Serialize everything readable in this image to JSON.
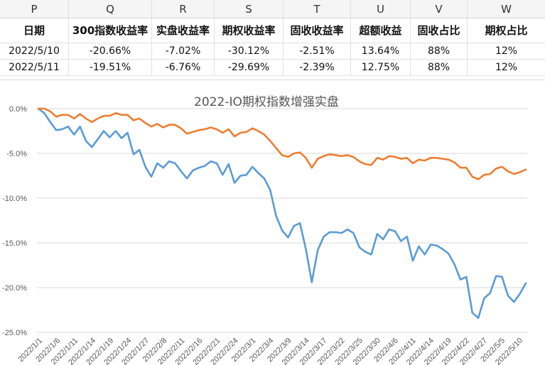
{
  "sheet": {
    "columns": [
      "P",
      "Q",
      "R",
      "S",
      "T",
      "U",
      "V",
      "W"
    ],
    "headers": [
      "日期",
      "300指数收益率",
      "实盘收益率",
      "期权收益率",
      "固收收益率",
      "超额收益",
      "固收占比",
      "期权占比"
    ],
    "rows": [
      [
        "2022/5/10",
        "-20.66%",
        "-7.02%",
        "-30.12%",
        "-2.51%",
        "13.64%",
        "88%",
        "12%"
      ],
      [
        "2022/5/11",
        "-19.51%",
        "-6.76%",
        "-29.69%",
        "-2.39%",
        "12.75%",
        "88%",
        "12%"
      ]
    ]
  },
  "chart_data": {
    "type": "line",
    "title": "2022-IO期权指数增强实盘",
    "ylim": [
      -25,
      0
    ],
    "y_ticks": [
      "0.0%",
      "-5.0%",
      "-10.0%",
      "-15.0%",
      "-20.0%",
      "-25.0%"
    ],
    "x_tick_labels": [
      "2022/1/1",
      "2022/1/6",
      "2022/1/11",
      "2022/1/14",
      "2022/1/19",
      "2022/1/24",
      "2022/1/27",
      "2022/2/8",
      "2022/2/11",
      "2022/2/16",
      "2022/2/21",
      "2022/2/24",
      "2022/3/1",
      "2022/3/4",
      "2022/3/9",
      "2022/3/14",
      "2022/3/17",
      "2022/3/22",
      "2022/3/25",
      "2022/3/30",
      "2022/4/6",
      "2022/4/11",
      "2022/4/14",
      "2022/4/19",
      "2022/4/22",
      "2022/4/27",
      "2022/5/5",
      "2022/5/10"
    ],
    "grid": true,
    "series": [
      {
        "color": "#5b9bd5",
        "values": [
          0,
          -0.5,
          -1.5,
          -2.4,
          -2.3,
          -2.0,
          -2.9,
          -2.0,
          -3.6,
          -4.3,
          -3.4,
          -2.5,
          -3.2,
          -2.5,
          -3.3,
          -2.7,
          -5.1,
          -4.6,
          -6.5,
          -7.6,
          -6.1,
          -6.6,
          -5.9,
          -6.1,
          -7.0,
          -7.8,
          -6.9,
          -6.6,
          -6.4,
          -5.9,
          -6.1,
          -7.4,
          -6.2,
          -8.3,
          -7.5,
          -7.4,
          -6.5,
          -7.2,
          -7.8,
          -9.1,
          -12.0,
          -13.6,
          -14.4,
          -13.1,
          -12.8,
          -15.7,
          -19.4,
          -15.8,
          -14.3,
          -13.8,
          -13.8,
          -13.9,
          -13.5,
          -13.9,
          -15.5,
          -16.0,
          -16.3,
          -14.0,
          -14.6,
          -13.5,
          -13.7,
          -14.8,
          -14.3,
          -17.0,
          -15.4,
          -16.3,
          -15.2,
          -15.3,
          -15.7,
          -16.2,
          -17.4,
          -19.1,
          -18.8,
          -22.8,
          -23.4,
          -21.2,
          -20.6,
          -18.7,
          -18.8,
          -20.9,
          -21.6,
          -20.7,
          -19.5
        ]
      },
      {
        "color": "#ed7d31",
        "values": [
          0,
          0,
          -0.3,
          -0.9,
          -0.7,
          -0.7,
          -1.1,
          -0.6,
          -1.1,
          -1.5,
          -1.1,
          -0.8,
          -0.8,
          -0.5,
          -0.7,
          -0.7,
          -1.3,
          -1.1,
          -1.6,
          -2.0,
          -1.7,
          -2.1,
          -1.8,
          -1.8,
          -2.2,
          -2.8,
          -2.6,
          -2.4,
          -2.3,
          -2.1,
          -2.3,
          -2.7,
          -2.3,
          -3.1,
          -2.7,
          -2.6,
          -2.2,
          -2.5,
          -2.9,
          -3.6,
          -4.4,
          -5.2,
          -5.4,
          -5.0,
          -4.9,
          -5.5,
          -6.6,
          -5.6,
          -5.3,
          -5.1,
          -5.2,
          -5.3,
          -5.2,
          -5.4,
          -5.9,
          -6.2,
          -6.3,
          -5.5,
          -5.7,
          -5.3,
          -5.4,
          -5.6,
          -5.5,
          -6.1,
          -5.7,
          -5.8,
          -5.5,
          -5.5,
          -5.6,
          -5.7,
          -6.0,
          -6.6,
          -6.6,
          -7.6,
          -7.9,
          -7.4,
          -7.3,
          -6.7,
          -6.5,
          -7.0,
          -7.3,
          -7.1,
          -6.8
        ]
      }
    ]
  }
}
